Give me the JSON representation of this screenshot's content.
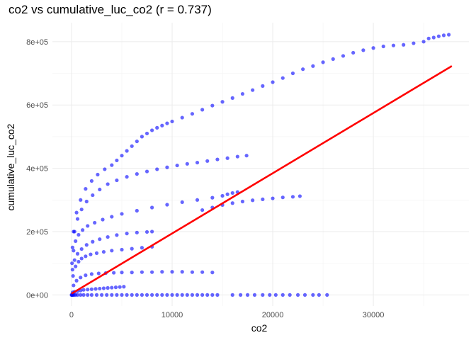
{
  "chart_data": {
    "type": "scatter",
    "title": "co2 vs cumulative_luc_co2 (r = 0.737)",
    "xlabel": "co2",
    "ylabel": "cumulative_luc_co2",
    "xlim": [
      -1900,
      39500
    ],
    "ylim": [
      -35000,
      860000
    ],
    "x_ticks": [
      0,
      10000,
      20000,
      30000
    ],
    "x_tick_labels": [
      "0",
      "10000",
      "20000",
      "30000"
    ],
    "y_ticks": [
      0,
      200000,
      400000,
      600000,
      800000
    ],
    "y_tick_labels": [
      "0e+00",
      "2e+05",
      "4e+05",
      "6e+05",
      "8e+05"
    ],
    "grid": true,
    "point_color": "#0000ff",
    "trend_color": "#ff0000",
    "trend_line": {
      "x": [
        0,
        37800
      ],
      "y": [
        4000,
        723000
      ]
    },
    "series": [
      {
        "x": [
          0,
          30,
          80,
          150,
          250,
          400,
          600,
          900,
          1200,
          1600,
          2000,
          2500,
          3000,
          3500,
          4000,
          4500,
          5000,
          5500,
          6000,
          6500,
          7000,
          7500,
          8000,
          8500,
          9000,
          9500,
          10000,
          10500,
          11000,
          11500,
          12000,
          12500,
          13000,
          13500,
          14000,
          14500,
          16000,
          16800,
          17500,
          18200,
          19000,
          19700,
          20300,
          21000,
          21700,
          22500,
          23200,
          24000,
          24600,
          25400
        ],
        "y": [
          0,
          0,
          0,
          0,
          0,
          0,
          0,
          0,
          0,
          0,
          0,
          0,
          0,
          0,
          0,
          0,
          0,
          0,
          0,
          0,
          0,
          0,
          0,
          0,
          0,
          0,
          0,
          0,
          0,
          0,
          0,
          0,
          0,
          0,
          0,
          0,
          0,
          0,
          0,
          0,
          0,
          0,
          0,
          0,
          0,
          0,
          0,
          0,
          0,
          0
        ]
      },
      {
        "x": [
          100,
          300,
          600,
          900,
          1200,
          1600,
          2000,
          2400,
          2800,
          3200,
          3600,
          4000,
          4400,
          4800,
          5200
        ],
        "y": [
          8000,
          10000,
          12000,
          14000,
          16000,
          17000,
          18000,
          19000,
          20000,
          21000,
          22000,
          23000,
          24000,
          25000,
          26000
        ]
      },
      {
        "x": [
          200,
          500,
          900,
          1400,
          2000,
          2700,
          3400,
          4200,
          5000,
          6000,
          7000,
          8000,
          9000,
          10000,
          11000,
          12000,
          13000,
          14000
        ],
        "y": [
          30000,
          45000,
          55000,
          62000,
          66000,
          68000,
          69000,
          70000,
          71000,
          71000,
          72000,
          72000,
          73000,
          73000,
          73000,
          72000,
          72000,
          71000
        ]
      },
      {
        "x": [
          150,
          400,
          700,
          1000,
          1400,
          1900,
          2500,
          3200,
          4000,
          5000,
          6000,
          7000,
          8000
        ],
        "y": [
          60000,
          90000,
          105000,
          115000,
          122000,
          128000,
          132000,
          136000,
          140000,
          143000,
          146000,
          149000,
          152000
        ]
      },
      {
        "x": [
          100,
          300,
          600,
          1000,
          1500,
          2100,
          2800,
          3600,
          4500,
          5500,
          6500,
          7500,
          8000
        ],
        "y": [
          80000,
          110000,
          130000,
          145000,
          158000,
          168000,
          176000,
          183000,
          189000,
          194000,
          197000,
          199000,
          200000
        ]
      },
      {
        "x": [
          50,
          200,
          400,
          700,
          1100,
          1600,
          2300,
          3100,
          4000,
          5000,
          6500,
          8000,
          9500,
          11000,
          12500,
          14000,
          15000,
          15500,
          16000,
          16500
        ],
        "y": [
          100000,
          140000,
          170000,
          190000,
          205000,
          218000,
          228000,
          238000,
          247000,
          256000,
          266000,
          276000,
          285000,
          293000,
          300000,
          307000,
          313000,
          318000,
          322000,
          325000
        ]
      },
      {
        "x": [
          13000,
          14000,
          15000,
          16000,
          17000,
          18000,
          19000,
          20000,
          21000,
          22000,
          22700
        ],
        "y": [
          268000,
          276000,
          284000,
          290000,
          295000,
          299000,
          302000,
          305000,
          308000,
          310000,
          312000
        ]
      },
      {
        "x": [
          100,
          300,
          600,
          1000,
          1500,
          2100,
          2800,
          3600,
          4500,
          5500,
          6500,
          7500,
          8500,
          9500,
          10500,
          11500,
          12500,
          13500,
          14500,
          15500,
          16500,
          17400
        ],
        "y": [
          150000,
          200000,
          240000,
          270000,
          295000,
          315000,
          333000,
          350000,
          362000,
          373000,
          382000,
          390000,
          397000,
          403000,
          409000,
          414000,
          418000,
          423000,
          428000,
          432000,
          437000,
          440000
        ]
      },
      {
        "x": [
          200,
          500,
          900,
          1400,
          2000,
          2600,
          3300,
          4000,
          4500,
          5000,
          5500,
          6000,
          6500,
          7000,
          7500,
          8000,
          8500,
          9000,
          9500,
          10000,
          11000,
          12000,
          13000,
          14000,
          15000,
          16000,
          17000,
          18000,
          19000,
          20000,
          21000,
          22000,
          23000,
          24000,
          25000,
          26000,
          27000,
          28000,
          29000,
          30000,
          31000,
          32000,
          33000,
          34000,
          35000,
          35500,
          36000,
          36500,
          37000,
          37500
        ],
        "y": [
          200000,
          260000,
          300000,
          335000,
          360000,
          380000,
          397000,
          410000,
          425000,
          440000,
          455000,
          470000,
          485000,
          500000,
          510000,
          520000,
          528000,
          535000,
          542000,
          548000,
          560000,
          572000,
          585000,
          598000,
          610000,
          622000,
          635000,
          647000,
          660000,
          672000,
          685000,
          700000,
          713000,
          723000,
          735000,
          745000,
          755000,
          765000,
          773000,
          780000,
          785000,
          788000,
          790000,
          795000,
          800000,
          810000,
          813000,
          817000,
          820000,
          822000
        ]
      }
    ]
  }
}
